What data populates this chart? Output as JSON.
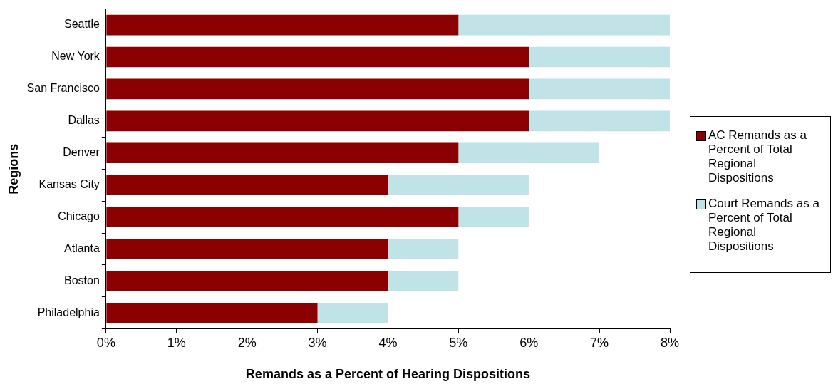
{
  "chart_data": {
    "type": "bar",
    "orientation": "horizontal",
    "stacked": true,
    "xlabel": "Remands as a Percent of Hearing Dispositions",
    "ylabel": "Regions",
    "categories": [
      "Seattle",
      "New York",
      "San Francisco",
      "Dallas",
      "Denver",
      "Kansas City",
      "Chicago",
      "Atlanta",
      "Boston",
      "Philadelphia"
    ],
    "series": [
      {
        "name": "AC Remands as a Percent of Total Regional Dispositions",
        "color": "#8b0000",
        "values": [
          5,
          6,
          6,
          6,
          5,
          4,
          5,
          4,
          4,
          3
        ]
      },
      {
        "name": "Court Remands as a Percent of Total Regional Dispositions",
        "color": "#bfe3e6",
        "values": [
          3,
          2,
          2,
          2,
          2,
          2,
          1,
          1,
          1,
          1
        ]
      }
    ],
    "xlim": [
      0,
      8
    ],
    "xticks": [
      {
        "value": 0,
        "label": "0%"
      },
      {
        "value": 1,
        "label": "1%"
      },
      {
        "value": 2,
        "label": "2%"
      },
      {
        "value": 3,
        "label": "3%"
      },
      {
        "value": 4,
        "label": "4%"
      },
      {
        "value": 5,
        "label": "5%"
      },
      {
        "value": 6,
        "label": "6%"
      },
      {
        "value": 7,
        "label": "7%"
      },
      {
        "value": 8,
        "label": "8%"
      }
    ],
    "grid": false,
    "legend": "right"
  }
}
